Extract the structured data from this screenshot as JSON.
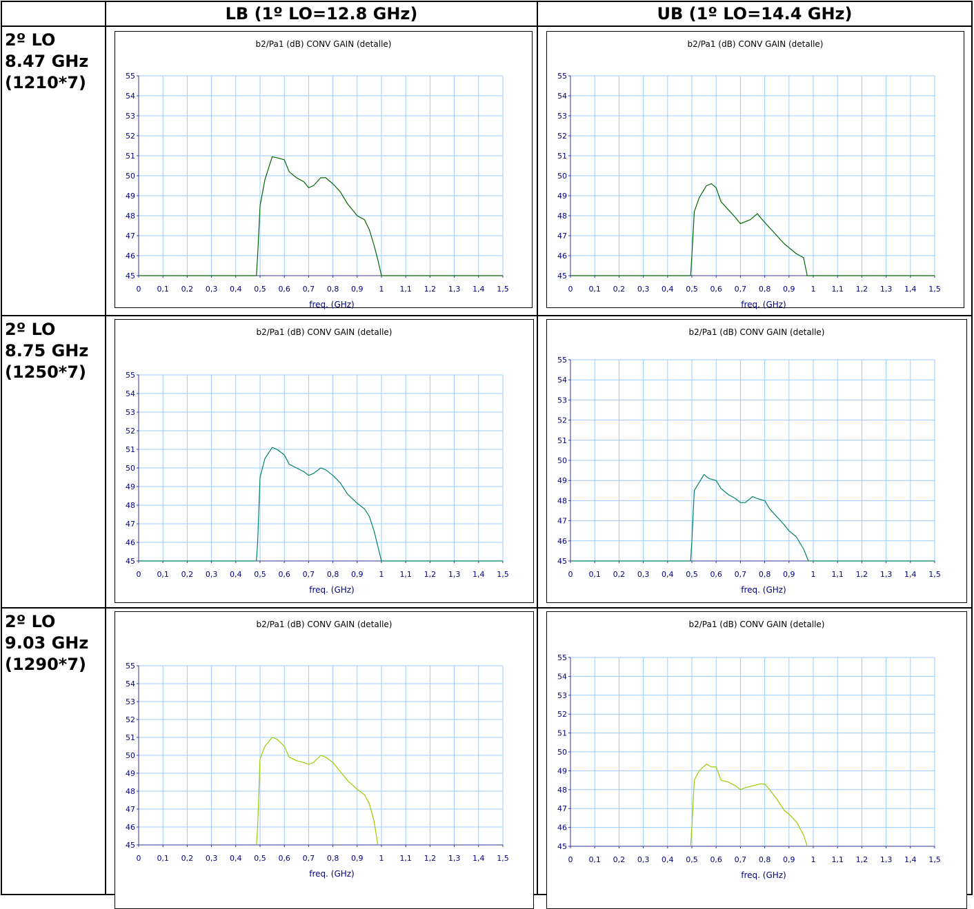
{
  "header": {
    "corner": "",
    "col_lb": "LB (1º LO=12.8 GHz)",
    "col_ub": "UB (1º LO=14.4 GHz)"
  },
  "rows": [
    {
      "line1": "2º LO",
      "line2": "8.47 GHz",
      "line3": "(1210*7)"
    },
    {
      "line1": "2º LO",
      "line2": "8.75 GHz",
      "line3": "(1250*7)"
    },
    {
      "line1": "2º LO",
      "line2": "9.03 GHz",
      "line3": "(1290*7)"
    }
  ],
  "colors": {
    "axis": "#333399",
    "gridline": "#99ccff",
    "tick_text": "#000080",
    "trace_row1": "#006600",
    "trace_row2": "#008066",
    "trace_row3": "#99cc00"
  },
  "chart_data": [
    {
      "id": "lb-1",
      "type": "line",
      "title": "b2/Pa1 (dB) CONV GAIN (detalle)",
      "xlabel": "freq. (GHz)",
      "ylabel": "",
      "xlim": [
        0,
        1.5
      ],
      "ylim": [
        45,
        55
      ],
      "grid": true,
      "legend": "none",
      "x_ticks": [
        "0",
        "0,1",
        "0,2",
        "0,3",
        "0,4",
        "0,5",
        "0,6",
        "0,7",
        "0,8",
        "0,9",
        "1",
        "1,1",
        "1,2",
        "1,3",
        "1,4",
        "1,5"
      ],
      "y_ticks": [
        "45",
        "46",
        "47",
        "48",
        "49",
        "50",
        "51",
        "52",
        "53",
        "54",
        "55"
      ],
      "series": [
        {
          "x": [
            0,
            0.485,
            0.49,
            0.5,
            0.52,
            0.55,
            0.57,
            0.6,
            0.62,
            0.65,
            0.68,
            0.7,
            0.72,
            0.75,
            0.77,
            0.8,
            0.83,
            0.86,
            0.9,
            0.93,
            0.95,
            0.97,
            0.985,
            1.0,
            1.5
          ],
          "y": [
            45,
            45,
            46,
            48.5,
            49.8,
            50.95,
            50.9,
            50.8,
            50.2,
            49.9,
            49.7,
            49.4,
            49.5,
            49.9,
            49.9,
            49.6,
            49.2,
            48.6,
            48.0,
            47.8,
            47.3,
            46.5,
            45.8,
            45,
            45
          ]
        }
      ]
    },
    {
      "id": "ub-1",
      "type": "line",
      "title": "b2/Pa1 (dB) CONV GAIN (detalle)",
      "xlabel": "freq. (GHz)",
      "ylabel": "",
      "xlim": [
        0,
        1.5
      ],
      "ylim": [
        45,
        55
      ],
      "grid": true,
      "legend": "none",
      "x_ticks": [
        "0",
        "0,1",
        "0,2",
        "0,3",
        "0,4",
        "0,5",
        "0,6",
        "0,7",
        "0,8",
        "0,9",
        "1",
        "1,1",
        "1,2",
        "1,3",
        "1,4",
        "1,5"
      ],
      "y_ticks": [
        "45",
        "46",
        "47",
        "48",
        "49",
        "50",
        "51",
        "52",
        "53",
        "54",
        "55"
      ],
      "series": [
        {
          "x": [
            0,
            0.495,
            0.5,
            0.51,
            0.53,
            0.56,
            0.58,
            0.6,
            0.62,
            0.65,
            0.68,
            0.7,
            0.72,
            0.74,
            0.77,
            0.79,
            0.82,
            0.85,
            0.88,
            0.9,
            0.93,
            0.96,
            0.975,
            1.5
          ],
          "y": [
            45,
            45,
            46,
            48.2,
            48.9,
            49.5,
            49.6,
            49.4,
            48.7,
            48.3,
            47.9,
            47.6,
            47.7,
            47.8,
            48.1,
            47.8,
            47.4,
            47.0,
            46.6,
            46.4,
            46.1,
            45.9,
            45,
            45
          ]
        }
      ]
    },
    {
      "id": "lb-2",
      "type": "line",
      "title": "b2/Pa1 (dB) CONV GAIN (detalle)",
      "xlabel": "freq. (GHz)",
      "ylabel": "",
      "xlim": [
        0,
        1.5
      ],
      "ylim": [
        45,
        55
      ],
      "grid": true,
      "legend": "none",
      "x_ticks": [
        "0",
        "0,1",
        "0,2",
        "0,3",
        "0,4",
        "0,5",
        "0,6",
        "0,7",
        "0,8",
        "0,9",
        "1",
        "1,1",
        "1,2",
        "1,3",
        "1,4",
        "1,5"
      ],
      "y_ticks": [
        "45",
        "46",
        "47",
        "48",
        "49",
        "50",
        "51",
        "52",
        "53",
        "54",
        "55"
      ],
      "series": [
        {
          "x": [
            0,
            0.485,
            0.49,
            0.5,
            0.52,
            0.55,
            0.57,
            0.6,
            0.62,
            0.65,
            0.68,
            0.7,
            0.72,
            0.75,
            0.77,
            0.8,
            0.83,
            0.86,
            0.9,
            0.93,
            0.95,
            0.97,
            0.985,
            1.0,
            1.5
          ],
          "y": [
            45,
            45,
            46,
            49.5,
            50.5,
            51.1,
            51.0,
            50.7,
            50.2,
            50.0,
            49.8,
            49.6,
            49.7,
            50.0,
            49.9,
            49.6,
            49.2,
            48.6,
            48.1,
            47.8,
            47.4,
            46.6,
            45.8,
            45,
            45
          ]
        }
      ]
    },
    {
      "id": "ub-2",
      "type": "line",
      "title": "b2/Pa1 (dB) CONV GAIN (detalle)",
      "xlabel": "freq. (GHz)",
      "ylabel": "",
      "xlim": [
        0,
        1.5
      ],
      "ylim": [
        45,
        55
      ],
      "grid": true,
      "legend": "none",
      "x_ticks": [
        "0",
        "0,1",
        "0,2",
        "0,3",
        "0,4",
        "0,5",
        "0,6",
        "0,7",
        "0,8",
        "0,9",
        "1",
        "1,1",
        "1,2",
        "1,3",
        "1,4",
        "1,5"
      ],
      "y_ticks": [
        "45",
        "46",
        "47",
        "48",
        "49",
        "50",
        "51",
        "52",
        "53",
        "54",
        "55"
      ],
      "series": [
        {
          "x": [
            0,
            0.495,
            0.5,
            0.51,
            0.53,
            0.55,
            0.57,
            0.6,
            0.62,
            0.65,
            0.68,
            0.7,
            0.72,
            0.75,
            0.77,
            0.8,
            0.82,
            0.85,
            0.88,
            0.9,
            0.93,
            0.96,
            0.98,
            1.5
          ],
          "y": [
            45,
            45,
            46,
            48.5,
            48.9,
            49.3,
            49.1,
            49.0,
            48.6,
            48.3,
            48.1,
            47.9,
            47.9,
            48.2,
            48.1,
            48.0,
            47.6,
            47.2,
            46.8,
            46.5,
            46.2,
            45.6,
            45,
            45
          ]
        }
      ]
    },
    {
      "id": "lb-3",
      "type": "line",
      "title": "b2/Pa1 (dB) CONV GAIN (detalle)",
      "xlabel": "freq. (GHz)",
      "ylabel": "",
      "xlim": [
        0,
        1.5
      ],
      "ylim": [
        45,
        55
      ],
      "grid": true,
      "legend": "none",
      "x_ticks": [
        "0",
        "0,1",
        "0,2",
        "0,3",
        "0,4",
        "0,5",
        "0,6",
        "0,7",
        "0,8",
        "0,9",
        "1",
        "1,1",
        "1,2",
        "1,3",
        "1,4",
        "1,5"
      ],
      "y_ticks": [
        "45",
        "46",
        "47",
        "48",
        "49",
        "50",
        "51",
        "52",
        "53",
        "54",
        "55"
      ],
      "series": [
        {
          "x": [
            0.485,
            0.49,
            0.5,
            0.52,
            0.55,
            0.57,
            0.6,
            0.62,
            0.65,
            0.68,
            0.7,
            0.72,
            0.75,
            0.77,
            0.8,
            0.83,
            0.86,
            0.9,
            0.93,
            0.95,
            0.97,
            0.985
          ],
          "y": [
            45,
            46,
            49.8,
            50.5,
            51.0,
            50.9,
            50.5,
            49.9,
            49.7,
            49.6,
            49.5,
            49.6,
            50.0,
            49.9,
            49.6,
            49.1,
            48.6,
            48.1,
            47.8,
            47.3,
            46.3,
            45
          ]
        }
      ]
    },
    {
      "id": "ub-3",
      "type": "line",
      "title": "b2/Pa1 (dB) CONV GAIN (detalle)",
      "xlabel": "freq. (GHz)",
      "ylabel": "",
      "xlim": [
        0,
        1.5
      ],
      "ylim": [
        45,
        55
      ],
      "grid": true,
      "legend": "none",
      "x_ticks": [
        "0",
        "0,1",
        "0,2",
        "0,3",
        "0,4",
        "0,5",
        "0,6",
        "0,7",
        "0,8",
        "0,9",
        "1",
        "1,1",
        "1,2",
        "1,3",
        "1,4",
        "1,5"
      ],
      "y_ticks": [
        "45",
        "46",
        "47",
        "48",
        "49",
        "50",
        "51",
        "52",
        "53",
        "54",
        "55"
      ],
      "series": [
        {
          "x": [
            0.495,
            0.5,
            0.51,
            0.53,
            0.56,
            0.58,
            0.6,
            0.62,
            0.65,
            0.68,
            0.7,
            0.72,
            0.75,
            0.78,
            0.8,
            0.82,
            0.85,
            0.88,
            0.9,
            0.93,
            0.96,
            0.975
          ],
          "y": [
            45,
            46,
            48.5,
            49.0,
            49.35,
            49.2,
            49.2,
            48.5,
            48.4,
            48.2,
            48.0,
            48.1,
            48.2,
            48.3,
            48.3,
            48.0,
            47.5,
            46.9,
            46.7,
            46.3,
            45.6,
            45
          ]
        }
      ]
    }
  ]
}
